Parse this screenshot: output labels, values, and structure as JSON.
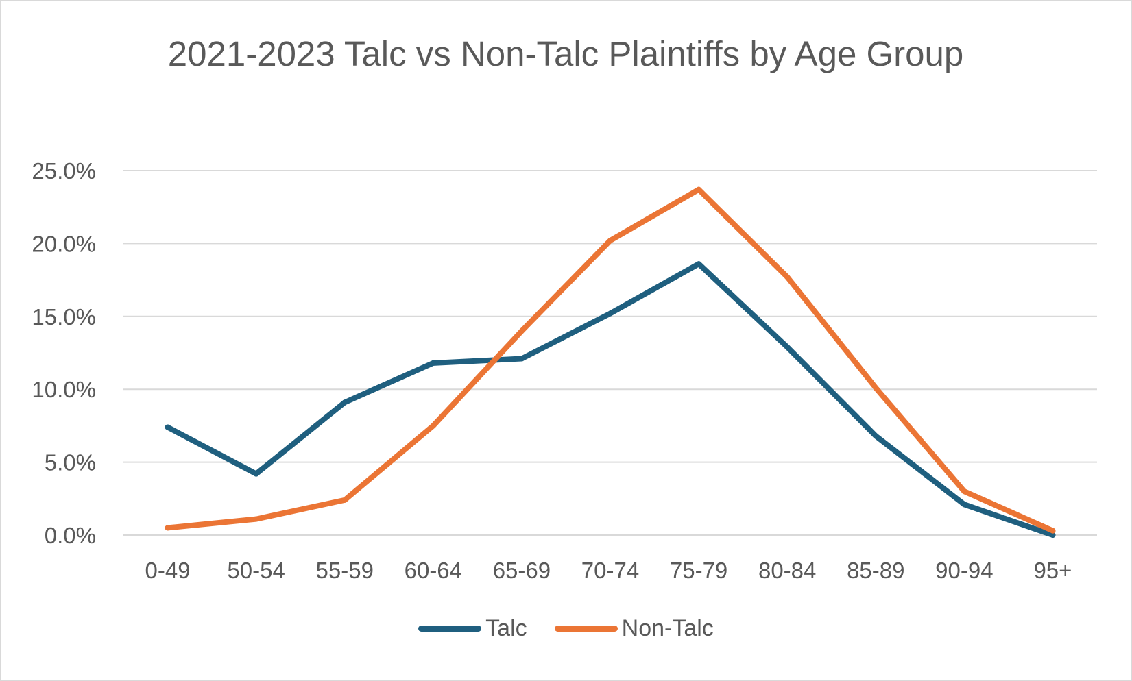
{
  "chart_data": {
    "type": "line",
    "title": "2021-2023 Talc vs Non-Talc Plaintiffs by Age Group",
    "xlabel": "",
    "ylabel": "",
    "categories": [
      "0-49",
      "50-54",
      "55-59",
      "60-64",
      "65-69",
      "70-74",
      "75-79",
      "80-84",
      "85-89",
      "90-94",
      "95+"
    ],
    "y_ticks": [
      "0.0%",
      "5.0%",
      "10.0%",
      "15.0%",
      "20.0%",
      "25.0%"
    ],
    "ylim": [
      0,
      25
    ],
    "grid": true,
    "legend_position": "bottom",
    "series": [
      {
        "name": "Talc",
        "color": "#1f5f7f",
        "values": [
          7.4,
          4.2,
          9.1,
          11.8,
          12.1,
          15.2,
          18.6,
          12.9,
          6.8,
          2.1,
          0.0
        ]
      },
      {
        "name": "Non-Talc",
        "color": "#eb7535",
        "values": [
          0.5,
          1.1,
          2.4,
          7.5,
          14.0,
          20.2,
          23.7,
          17.7,
          10.1,
          3.0,
          0.3
        ]
      }
    ]
  }
}
